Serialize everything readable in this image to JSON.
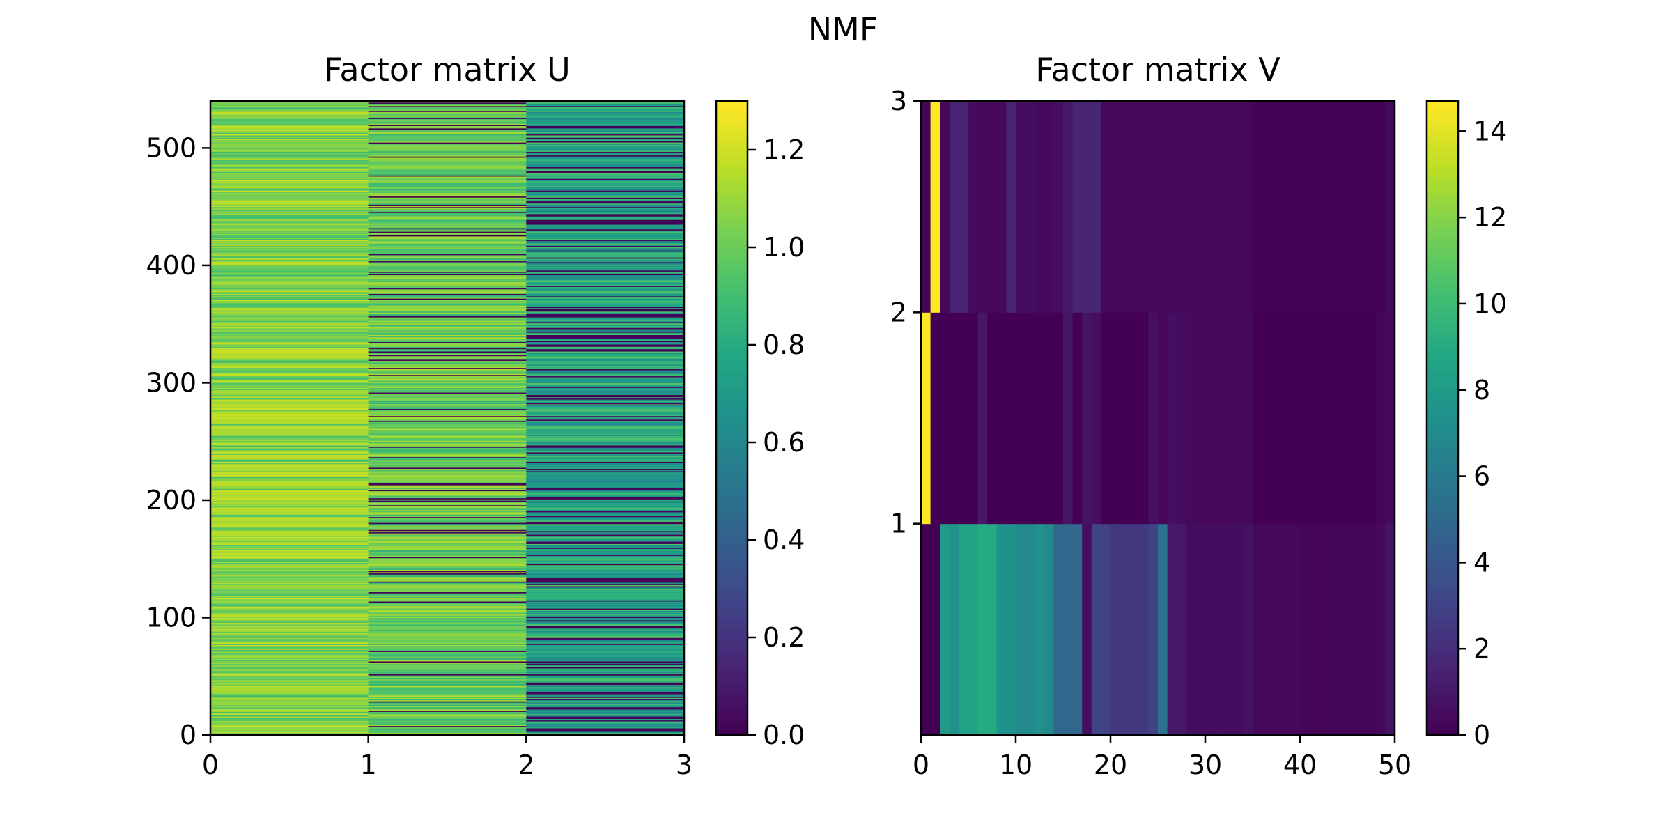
{
  "figure": {
    "suptitle": "NMF"
  },
  "chart_data": [
    {
      "type": "heatmap",
      "title": "Factor matrix U",
      "xlabel": "",
      "ylabel": "",
      "xlim": [
        0,
        3
      ],
      "ylim": [
        0,
        540
      ],
      "x_ticks": [
        "0",
        "1",
        "2",
        "3"
      ],
      "y_ticks": [
        "0",
        "100",
        "200",
        "300",
        "400",
        "500"
      ],
      "n_rows": 540,
      "columns": [
        {
          "index": 0,
          "typical_value": 1.05,
          "range": [
            0.9,
            1.2
          ],
          "description": "mostly bright green-yellow stripes"
        },
        {
          "index": 1,
          "typical_value": 0.95,
          "range": [
            0.0,
            1.15
          ],
          "description": "green with scattered near-zero dark rows"
        },
        {
          "index": 2,
          "typical_value": 0.72,
          "range": [
            0.0,
            0.95
          ],
          "description": "teal with many near-zero dark rows"
        }
      ],
      "colorbar": {
        "vmin": 0.0,
        "vmax": 1.3,
        "ticks": [
          "0.0",
          "0.2",
          "0.4",
          "0.6",
          "0.8",
          "1.0",
          "1.2"
        ],
        "cmap": "viridis"
      }
    },
    {
      "type": "heatmap",
      "title": "Factor matrix V",
      "xlabel": "",
      "ylabel": "",
      "xlim": [
        0,
        50
      ],
      "ylim": [
        0,
        3
      ],
      "x_ticks": [
        "0",
        "10",
        "20",
        "30",
        "40",
        "50"
      ],
      "y_ticks": [
        "1",
        "2",
        "3"
      ],
      "rows": [
        {
          "row": 0,
          "values": [
            0.0,
            0.0,
            8.0,
            7.5,
            8.5,
            8.5,
            9.0,
            9.0,
            7.5,
            7.5,
            7.0,
            7.0,
            7.5,
            7.0,
            5.0,
            5.0,
            5.0,
            0.5,
            3.0,
            3.0,
            2.5,
            2.5,
            2.5,
            2.5,
            3.0,
            5.5,
            1.0,
            1.0,
            0.5,
            0.5,
            0.5,
            0.5,
            0.5,
            0.5,
            0.7,
            0.3,
            0.3,
            0.3,
            0.3,
            0.3,
            0.2,
            0.2,
            0.2,
            0.2,
            0.2,
            0.2,
            0.2,
            0.2,
            0.3,
            0.8
          ]
        },
        {
          "row": 1,
          "values": [
            14.7,
            0.0,
            0.0,
            0.0,
            0.0,
            0.0,
            1.0,
            0.0,
            0.0,
            0.0,
            0.0,
            0.0,
            0.0,
            0.0,
            0.0,
            0.8,
            0.0,
            0.8,
            0.6,
            0.0,
            0.0,
            0.0,
            0.0,
            0.0,
            0.6,
            0.3,
            0.6,
            0.5,
            0.4,
            0.3,
            0.3,
            0.3,
            0.3,
            0.3,
            0.3,
            0.0,
            0.0,
            0.0,
            0.0,
            0.0,
            0.0,
            0.0,
            0.0,
            0.0,
            0.0,
            0.0,
            0.0,
            0.0,
            0.2,
            0.4
          ]
        },
        {
          "row": 2,
          "values": [
            0.2,
            14.7,
            0.3,
            1.5,
            1.5,
            0.5,
            0.3,
            0.3,
            0.3,
            1.5,
            0.5,
            0.5,
            0.4,
            0.4,
            0.5,
            1.0,
            1.5,
            1.5,
            1.5,
            0.3,
            0.3,
            0.3,
            0.3,
            0.3,
            0.3,
            0.3,
            0.3,
            0.3,
            0.3,
            0.3,
            0.3,
            0.3,
            0.3,
            0.3,
            0.3,
            0.1,
            0.1,
            0.1,
            0.1,
            0.1,
            0.1,
            0.1,
            0.1,
            0.1,
            0.1,
            0.1,
            0.1,
            0.1,
            0.1,
            0.4
          ]
        }
      ],
      "colorbar": {
        "vmin": 0,
        "vmax": 14.7,
        "ticks": [
          "0",
          "2",
          "4",
          "6",
          "8",
          "10",
          "12",
          "14"
        ],
        "cmap": "viridis"
      }
    }
  ]
}
